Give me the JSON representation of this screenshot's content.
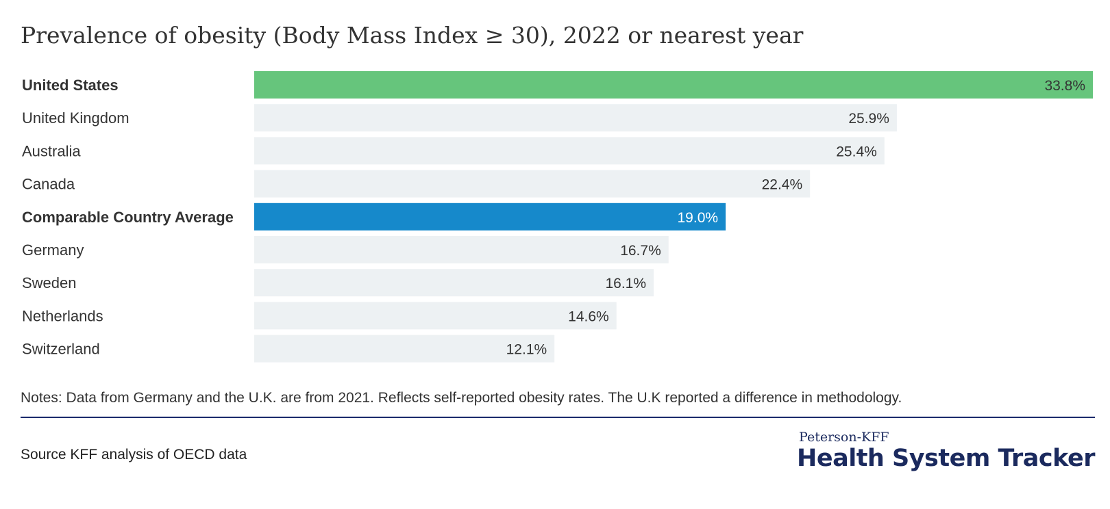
{
  "chart_data": {
    "type": "bar",
    "orientation": "horizontal",
    "title": "Prevalence of obesity (Body Mass Index ≥ 30), 2022 or nearest year",
    "categories": [
      "United States",
      "United Kingdom",
      "Australia",
      "Canada",
      "Comparable Country Average",
      "Germany",
      "Sweden",
      "Netherlands",
      "Switzerland"
    ],
    "values": [
      33.8,
      25.9,
      25.4,
      22.4,
      19.0,
      16.7,
      16.1,
      14.6,
      12.1
    ],
    "value_labels": [
      "33.8%",
      "25.9%",
      "25.4%",
      "22.4%",
      "19.0%",
      "16.7%",
      "16.1%",
      "14.6%",
      "12.1%"
    ],
    "highlighted": [
      "United States",
      "Comparable Country Average"
    ],
    "xlim": [
      0,
      33.8
    ],
    "grid": false,
    "colors": {
      "United States": "#66c57c",
      "Comparable Country Average": "#1689cb",
      "default": "#edf1f3"
    }
  },
  "notes": "Notes: Data from Germany and the U.K. are from 2021. Reflects self-reported obesity rates. The U.K reported a difference in methodology.",
  "source": "Source KFF analysis of OECD data",
  "logo": {
    "top": "Peterson-KFF",
    "main": "Health System Tracker"
  }
}
